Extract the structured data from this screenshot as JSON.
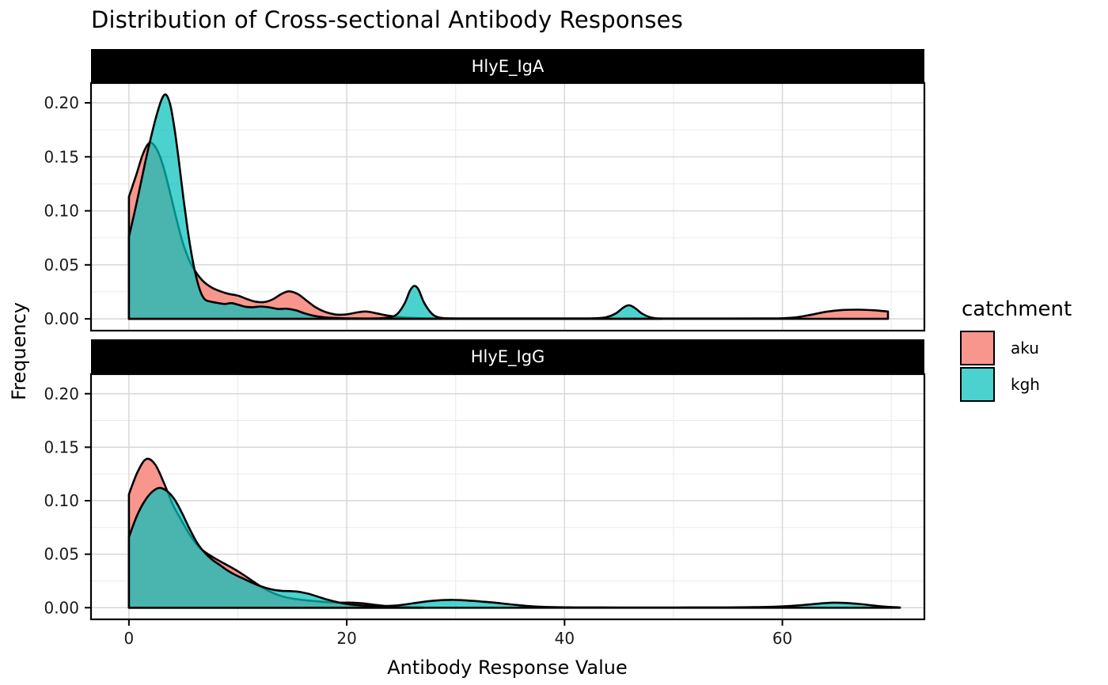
{
  "title": "Distribution of Cross-sectional Antibody Responses",
  "chart_data": {
    "type": "area",
    "subtype": "overlaid-density-facets",
    "title": "Distribution of Cross-sectional Antibody Responses",
    "xlabel": "Antibody Response Value",
    "ylabel": "Frequency",
    "grid": true,
    "xlim": [
      -3.48,
      73.04
    ],
    "ylim": [
      -0.0109,
      0.2183
    ],
    "x_ticks": {
      "values": [
        0,
        20,
        40,
        60
      ],
      "labels": [
        "0",
        "20",
        "40",
        "60"
      ],
      "minor": [
        10,
        30,
        50,
        70
      ]
    },
    "y_ticks": {
      "values": [
        0,
        0.05,
        0.1,
        0.15,
        0.2
      ],
      "labels": [
        "0.00",
        "0.05",
        "0.10",
        "0.15",
        "0.20"
      ],
      "minor": [
        0.025,
        0.075,
        0.125,
        0.175
      ]
    },
    "legend": {
      "title": "catchment",
      "position": "right",
      "entries": [
        {
          "label": "aku",
          "fill": "#F8968D"
        },
        {
          "label": "kgh",
          "fill": "#4BD2CE"
        }
      ]
    },
    "colors": {
      "aku_fill": "#F8968D",
      "kgh_fill": "rgba(5,193,187,0.72)",
      "outline": "#000000",
      "grid_major": "#d6d6d6",
      "grid_minor": "#ebebeb",
      "panel_border": "#000000",
      "strip_bg": "#000000",
      "strip_text": "#ffffff",
      "axis_text": "#1a1a1a"
    },
    "facets": [
      {
        "label": "HlyE_IgA",
        "series": [
          {
            "name": "aku",
            "points": [
              [
                0,
                0.113
              ],
              [
                0.7,
                0.134
              ],
              [
                1.3,
                0.153
              ],
              [
                1.9,
                0.163
              ],
              [
                2.5,
                0.158
              ],
              [
                3.1,
                0.143
              ],
              [
                3.7,
                0.12
              ],
              [
                4.3,
                0.095
              ],
              [
                4.9,
                0.072
              ],
              [
                5.5,
                0.055
              ],
              [
                6.1,
                0.044
              ],
              [
                6.8,
                0.035
              ],
              [
                7.6,
                0.029
              ],
              [
                8.4,
                0.0255
              ],
              [
                9.2,
                0.023
              ],
              [
                10,
                0.0215
              ],
              [
                10.8,
                0.0185
              ],
              [
                11.6,
                0.016
              ],
              [
                12.4,
                0.0155
              ],
              [
                13.2,
                0.018
              ],
              [
                14,
                0.023
              ],
              [
                14.7,
                0.0255
              ],
              [
                15.5,
                0.023
              ],
              [
                16.3,
                0.017
              ],
              [
                17.1,
                0.011
              ],
              [
                18,
                0.0065
              ],
              [
                19,
                0.004
              ],
              [
                20,
                0.0042
              ],
              [
                21,
                0.006
              ],
              [
                21.8,
                0.0068
              ],
              [
                22.8,
                0.005
              ],
              [
                23.8,
                0.003
              ],
              [
                25,
                0.0014
              ],
              [
                26.5,
                0.0007
              ],
              [
                28,
                0.0004
              ],
              [
                31,
                0.0003
              ],
              [
                36,
                0.0003
              ],
              [
                42,
                0.0003
              ],
              [
                48,
                0.0003
              ],
              [
                54,
                0.0003
              ],
              [
                59,
                0.0004
              ],
              [
                61,
                0.0012
              ],
              [
                62.5,
                0.0035
              ],
              [
                64,
                0.0065
              ],
              [
                65.5,
                0.0082
              ],
              [
                67,
                0.0085
              ],
              [
                68.3,
                0.008
              ],
              [
                69.3,
                0.0072
              ],
              [
                69.7,
                0.0068
              ]
            ]
          },
          {
            "name": "kgh",
            "points": [
              [
                0,
                0.076
              ],
              [
                0.5,
                0.098
              ],
              [
                1,
                0.121
              ],
              [
                1.5,
                0.145
              ],
              [
                2,
                0.167
              ],
              [
                2.5,
                0.187
              ],
              [
                3,
                0.203
              ],
              [
                3.4,
                0.2075
              ],
              [
                3.8,
                0.198
              ],
              [
                4.2,
                0.175
              ],
              [
                4.6,
                0.145
              ],
              [
                5,
                0.112
              ],
              [
                5.4,
                0.082
              ],
              [
                5.8,
                0.057
              ],
              [
                6.2,
                0.038
              ],
              [
                6.6,
                0.0245
              ],
              [
                7,
                0.0178
              ],
              [
                7.5,
                0.016
              ],
              [
                8.1,
                0.0148
              ],
              [
                8.8,
                0.0138
              ],
              [
                9.4,
                0.0146
              ],
              [
                10,
                0.0132
              ],
              [
                10.7,
                0.0112
              ],
              [
                11.4,
                0.0108
              ],
              [
                12.1,
                0.0114
              ],
              [
                12.9,
                0.0106
              ],
              [
                13.7,
                0.0092
              ],
              [
                14.5,
                0.0094
              ],
              [
                15.3,
                0.008
              ],
              [
                16.1,
                0.0052
              ],
              [
                17,
                0.0028
              ],
              [
                18,
                0.0013
              ],
              [
                19.5,
                0.0006
              ],
              [
                21,
                0.0004
              ],
              [
                22.5,
                0.0004
              ],
              [
                23.8,
                0.0012
              ],
              [
                24.6,
                0.0042
              ],
              [
                25.3,
                0.014
              ],
              [
                25.8,
                0.026
              ],
              [
                26.2,
                0.0305
              ],
              [
                26.6,
                0.027
              ],
              [
                27.1,
                0.015
              ],
              [
                27.8,
                0.005
              ],
              [
                28.4,
                0.0015
              ],
              [
                29.2,
                0.0005
              ],
              [
                31,
                0.0003
              ],
              [
                35,
                0.0003
              ],
              [
                39,
                0.0003
              ],
              [
                42.5,
                0.0004
              ],
              [
                43.8,
                0.0015
              ],
              [
                44.7,
                0.005
              ],
              [
                45.4,
                0.0105
              ],
              [
                45.9,
                0.0126
              ],
              [
                46.4,
                0.0105
              ],
              [
                47.1,
                0.005
              ],
              [
                47.8,
                0.0016
              ],
              [
                48.4,
                0.0005
              ],
              [
                48.9,
                0.0003
              ]
            ]
          }
        ]
      },
      {
        "label": "HlyE_IgG",
        "series": [
          {
            "name": "aku",
            "points": [
              [
                0,
                0.106
              ],
              [
                0.8,
                0.127
              ],
              [
                1.6,
                0.139
              ],
              [
                2.4,
                0.134
              ],
              [
                3.2,
                0.117
              ],
              [
                4,
                0.097
              ],
              [
                4.8,
                0.082
              ],
              [
                5.6,
                0.068
              ],
              [
                6.4,
                0.057
              ],
              [
                7.2,
                0.0505
              ],
              [
                8,
                0.0455
              ],
              [
                8.8,
                0.041
              ],
              [
                9.6,
                0.0365
              ],
              [
                10.4,
                0.0315
              ],
              [
                11.2,
                0.026
              ],
              [
                12,
                0.0205
              ],
              [
                12.8,
                0.0158
              ],
              [
                13.6,
                0.0122
              ],
              [
                14.5,
                0.0095
              ],
              [
                15.5,
                0.0078
              ],
              [
                16.5,
                0.0066
              ],
              [
                17.5,
                0.0058
              ],
              [
                18.5,
                0.005
              ],
              [
                19.5,
                0.0047
              ],
              [
                20.5,
                0.0047
              ],
              [
                21.5,
                0.004
              ],
              [
                22.5,
                0.0028
              ],
              [
                23.5,
                0.0016
              ],
              [
                24.5,
                0.0008
              ],
              [
                25.8,
                0.0004
              ],
              [
                27,
                0.0003
              ]
            ]
          },
          {
            "name": "kgh",
            "points": [
              [
                0,
                0.066
              ],
              [
                0.7,
                0.085
              ],
              [
                1.4,
                0.099
              ],
              [
                2.1,
                0.108
              ],
              [
                2.8,
                0.112
              ],
              [
                3.5,
                0.109
              ],
              [
                4.2,
                0.101
              ],
              [
                4.9,
                0.088
              ],
              [
                5.6,
                0.073
              ],
              [
                6.3,
                0.06
              ],
              [
                7,
                0.051
              ],
              [
                7.7,
                0.0445
              ],
              [
                8.4,
                0.0395
              ],
              [
                9.1,
                0.0345
              ],
              [
                9.8,
                0.0305
              ],
              [
                10.5,
                0.0272
              ],
              [
                11.2,
                0.0238
              ],
              [
                11.9,
                0.0208
              ],
              [
                12.6,
                0.0184
              ],
              [
                13.3,
                0.0167
              ],
              [
                14,
                0.0158
              ],
              [
                14.8,
                0.0155
              ],
              [
                15.6,
                0.0148
              ],
              [
                16.4,
                0.0132
              ],
              [
                17.2,
                0.0108
              ],
              [
                18,
                0.0082
              ],
              [
                18.8,
                0.006
              ],
              [
                19.6,
                0.0042
              ],
              [
                20.5,
                0.0028
              ],
              [
                21.5,
                0.002
              ],
              [
                22.5,
                0.0016
              ],
              [
                23.5,
                0.0015
              ],
              [
                24.5,
                0.002
              ],
              [
                25.5,
                0.0032
              ],
              [
                26.5,
                0.0047
              ],
              [
                27.5,
                0.006
              ],
              [
                28.5,
                0.0069
              ],
              [
                29.5,
                0.0073
              ],
              [
                30.5,
                0.0071
              ],
              [
                31.5,
                0.0064
              ],
              [
                32.5,
                0.0056
              ],
              [
                33.5,
                0.0048
              ],
              [
                34.5,
                0.0037
              ],
              [
                35.5,
                0.0026
              ],
              [
                36.5,
                0.0017
              ],
              [
                37.5,
                0.001
              ],
              [
                39,
                0.0005
              ],
              [
                41,
                0.0003
              ],
              [
                45,
                0.0002
              ],
              [
                50,
                0.0002
              ],
              [
                55,
                0.0003
              ],
              [
                57.5,
                0.0005
              ],
              [
                59.5,
                0.001
              ],
              [
                61,
                0.0018
              ],
              [
                62.5,
                0.003
              ],
              [
                63.8,
                0.0042
              ],
              [
                64.8,
                0.0047
              ],
              [
                65.8,
                0.0044
              ],
              [
                67,
                0.0035
              ],
              [
                68.2,
                0.0022
              ],
              [
                69.3,
                0.0011
              ],
              [
                70.2,
                0.0005
              ],
              [
                70.8,
                0.0003
              ]
            ]
          }
        ]
      }
    ]
  }
}
